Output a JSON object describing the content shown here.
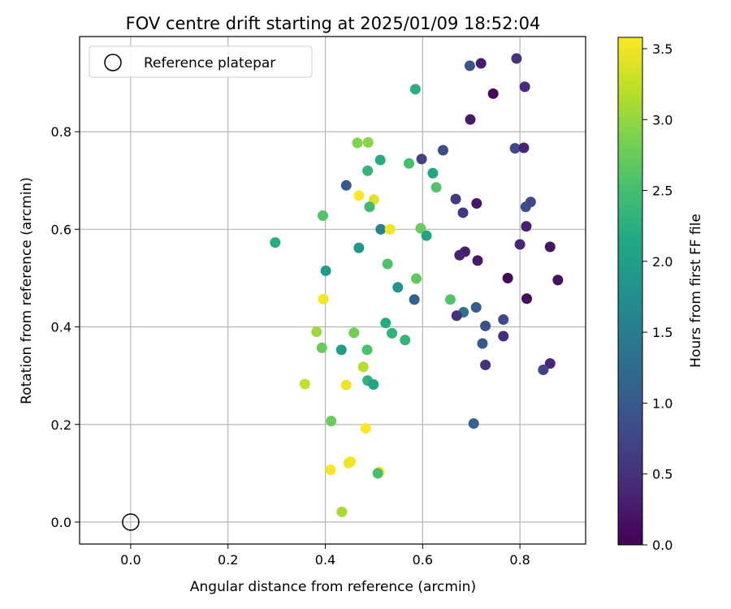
{
  "chart_data": {
    "type": "scatter",
    "title": "FOV centre drift starting at 2025/01/09 18:52:04",
    "xlabel": "Angular distance from reference (arcmin)",
    "ylabel": "Rotation from reference (arcmin)",
    "xlim": [
      -0.105,
      0.935
    ],
    "ylim": [
      -0.045,
      0.995
    ],
    "xticks": [
      "0.0",
      "0.2",
      "0.4",
      "0.6",
      "0.8"
    ],
    "yticks": [
      "0.0",
      "0.2",
      "0.4",
      "0.6",
      "0.8"
    ],
    "grid": true,
    "legend": {
      "position": "top-left",
      "entries": [
        "Reference platepar"
      ]
    },
    "colorbar": {
      "label": "Hours from first FF file",
      "colormap": "viridis",
      "range": [
        0.0,
        3.58
      ],
      "ticks": [
        "0.0",
        "0.5",
        "1.0",
        "1.5",
        "2.0",
        "2.5",
        "3.0",
        "3.5"
      ]
    },
    "reference_point": {
      "x": 0.0,
      "y": 0.0
    },
    "points": [
      {
        "x": 0.72,
        "y": 0.94,
        "c": 0.3
      },
      {
        "x": 0.793,
        "y": 0.95,
        "c": 0.5
      },
      {
        "x": 0.697,
        "y": 0.935,
        "c": 0.95
      },
      {
        "x": 0.81,
        "y": 0.892,
        "c": 0.45
      },
      {
        "x": 0.745,
        "y": 0.878,
        "c": 0.05
      },
      {
        "x": 0.585,
        "y": 0.887,
        "c": 2.25
      },
      {
        "x": 0.698,
        "y": 0.825,
        "c": 0.25
      },
      {
        "x": 0.466,
        "y": 0.777,
        "c": 2.9
      },
      {
        "x": 0.488,
        "y": 0.778,
        "c": 2.95
      },
      {
        "x": 0.79,
        "y": 0.766,
        "c": 0.8
      },
      {
        "x": 0.808,
        "y": 0.767,
        "c": 0.35
      },
      {
        "x": 0.642,
        "y": 0.762,
        "c": 0.85
      },
      {
        "x": 0.598,
        "y": 0.744,
        "c": 0.7
      },
      {
        "x": 0.513,
        "y": 0.742,
        "c": 2.2
      },
      {
        "x": 0.572,
        "y": 0.735,
        "c": 2.5
      },
      {
        "x": 0.487,
        "y": 0.72,
        "c": 2.35
      },
      {
        "x": 0.621,
        "y": 0.715,
        "c": 2.15
      },
      {
        "x": 0.443,
        "y": 0.69,
        "c": 1.0
      },
      {
        "x": 0.628,
        "y": 0.686,
        "c": 2.6
      },
      {
        "x": 0.469,
        "y": 0.669,
        "c": 3.58
      },
      {
        "x": 0.5,
        "y": 0.661,
        "c": 3.4
      },
      {
        "x": 0.668,
        "y": 0.662,
        "c": 0.6
      },
      {
        "x": 0.822,
        "y": 0.656,
        "c": 0.75
      },
      {
        "x": 0.711,
        "y": 0.653,
        "c": 0.2
      },
      {
        "x": 0.491,
        "y": 0.646,
        "c": 2.45
      },
      {
        "x": 0.812,
        "y": 0.646,
        "c": 0.85
      },
      {
        "x": 0.683,
        "y": 0.634,
        "c": 0.55
      },
      {
        "x": 0.395,
        "y": 0.628,
        "c": 2.6
      },
      {
        "x": 0.813,
        "y": 0.606,
        "c": 0.3
      },
      {
        "x": 0.596,
        "y": 0.602,
        "c": 2.75
      },
      {
        "x": 0.514,
        "y": 0.6,
        "c": 1.55
      },
      {
        "x": 0.533,
        "y": 0.6,
        "c": 3.5
      },
      {
        "x": 0.608,
        "y": 0.587,
        "c": 2.05
      },
      {
        "x": 0.297,
        "y": 0.573,
        "c": 2.2
      },
      {
        "x": 0.8,
        "y": 0.569,
        "c": 0.4
      },
      {
        "x": 0.862,
        "y": 0.564,
        "c": 0.2
      },
      {
        "x": 0.469,
        "y": 0.562,
        "c": 1.9
      },
      {
        "x": 0.687,
        "y": 0.554,
        "c": 0.3
      },
      {
        "x": 0.676,
        "y": 0.547,
        "c": 0.35
      },
      {
        "x": 0.713,
        "y": 0.536,
        "c": 0.25
      },
      {
        "x": 0.528,
        "y": 0.529,
        "c": 2.55
      },
      {
        "x": 0.401,
        "y": 0.515,
        "c": 1.95
      },
      {
        "x": 0.587,
        "y": 0.499,
        "c": 2.7
      },
      {
        "x": 0.878,
        "y": 0.496,
        "c": 0.15
      },
      {
        "x": 0.775,
        "y": 0.5,
        "c": 0.05
      },
      {
        "x": 0.549,
        "y": 0.481,
        "c": 1.85
      },
      {
        "x": 0.814,
        "y": 0.458,
        "c": 0.1
      },
      {
        "x": 0.396,
        "y": 0.457,
        "c": 3.55
      },
      {
        "x": 0.583,
        "y": 0.456,
        "c": 1.1
      },
      {
        "x": 0.657,
        "y": 0.456,
        "c": 2.6
      },
      {
        "x": 0.71,
        "y": 0.44,
        "c": 1.05
      },
      {
        "x": 0.684,
        "y": 0.43,
        "c": 1.35
      },
      {
        "x": 0.67,
        "y": 0.423,
        "c": 0.5
      },
      {
        "x": 0.766,
        "y": 0.415,
        "c": 0.8
      },
      {
        "x": 0.524,
        "y": 0.408,
        "c": 2.2
      },
      {
        "x": 0.729,
        "y": 0.402,
        "c": 0.9
      },
      {
        "x": 0.382,
        "y": 0.39,
        "c": 3.05
      },
      {
        "x": 0.459,
        "y": 0.388,
        "c": 2.8
      },
      {
        "x": 0.537,
        "y": 0.387,
        "c": 2.3
      },
      {
        "x": 0.766,
        "y": 0.381,
        "c": 0.45
      },
      {
        "x": 0.564,
        "y": 0.373,
        "c": 2.35
      },
      {
        "x": 0.723,
        "y": 0.366,
        "c": 1.0
      },
      {
        "x": 0.393,
        "y": 0.357,
        "c": 2.75
      },
      {
        "x": 0.433,
        "y": 0.353,
        "c": 2.0
      },
      {
        "x": 0.486,
        "y": 0.353,
        "c": 2.55
      },
      {
        "x": 0.862,
        "y": 0.325,
        "c": 0.4
      },
      {
        "x": 0.729,
        "y": 0.322,
        "c": 0.5
      },
      {
        "x": 0.478,
        "y": 0.318,
        "c": 3.2
      },
      {
        "x": 0.848,
        "y": 0.312,
        "c": 0.7
      },
      {
        "x": 0.487,
        "y": 0.29,
        "c": 2.3
      },
      {
        "x": 0.499,
        "y": 0.282,
        "c": 2.1
      },
      {
        "x": 0.358,
        "y": 0.283,
        "c": 3.25
      },
      {
        "x": 0.443,
        "y": 0.281,
        "c": 3.5
      },
      {
        "x": 0.412,
        "y": 0.207,
        "c": 2.75
      },
      {
        "x": 0.705,
        "y": 0.202,
        "c": 1.1
      },
      {
        "x": 0.483,
        "y": 0.192,
        "c": 3.58
      },
      {
        "x": 0.452,
        "y": 0.124,
        "c": 3.55
      },
      {
        "x": 0.448,
        "y": 0.121,
        "c": 3.5
      },
      {
        "x": 0.411,
        "y": 0.107,
        "c": 3.55
      },
      {
        "x": 0.511,
        "y": 0.103,
        "c": 3.58
      },
      {
        "x": 0.508,
        "y": 0.1,
        "c": 2.5
      },
      {
        "x": 0.434,
        "y": 0.021,
        "c": 3.1
      }
    ]
  }
}
